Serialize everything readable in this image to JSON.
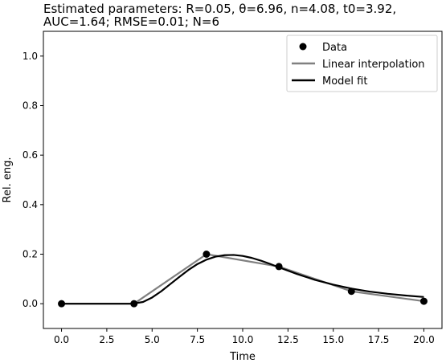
{
  "chart_data": {
    "type": "line",
    "title_lines": [
      "Estimated parameters: R=0.05, θ=6.96, n=4.08, t0=3.92,",
      "AUC=1.64; RMSE=0.01; N=6"
    ],
    "xlabel": "Time",
    "ylabel": "Rel. eng.",
    "xlim": [
      -1,
      21
    ],
    "ylim": [
      -0.1,
      1.1
    ],
    "xticks": [
      0,
      2.5,
      5,
      7.5,
      10,
      12.5,
      15,
      17.5,
      20
    ],
    "xtick_labels": [
      "0.0",
      "2.5",
      "5.0",
      "7.5",
      "10.0",
      "12.5",
      "15.0",
      "17.5",
      "20.0"
    ],
    "yticks": [
      0,
      0.2,
      0.4,
      0.6,
      0.8,
      1.0
    ],
    "ytick_labels": [
      "0.0",
      "0.2",
      "0.4",
      "0.6",
      "0.8",
      "1.0"
    ],
    "grid": false,
    "legend_position": "top-right",
    "series": [
      {
        "name": "Data",
        "kind": "scatter",
        "color": "#000000",
        "x": [
          0,
          4,
          8,
          12,
          16,
          20
        ],
        "y": [
          0.0,
          0.0,
          0.2,
          0.15,
          0.05,
          0.01
        ]
      },
      {
        "name": "Linear interpolation",
        "kind": "line",
        "color": "#808080",
        "x": [
          0,
          4,
          8,
          12,
          16,
          20
        ],
        "y": [
          0.0,
          0.0,
          0.2,
          0.15,
          0.05,
          0.01
        ]
      },
      {
        "name": "Model fit",
        "kind": "line",
        "color": "#000000",
        "x": [
          0,
          3.92,
          4.5,
          5,
          5.5,
          6,
          6.5,
          7,
          7.5,
          8,
          8.5,
          9,
          9.5,
          10,
          10.5,
          11,
          11.5,
          12,
          13,
          14,
          15,
          16,
          17,
          18,
          19,
          20
        ],
        "y": [
          0.0,
          0.0,
          0.007,
          0.025,
          0.05,
          0.079,
          0.108,
          0.136,
          0.16,
          0.178,
          0.19,
          0.196,
          0.197,
          0.193,
          0.185,
          0.174,
          0.161,
          0.147,
          0.12,
          0.096,
          0.077,
          0.061,
          0.049,
          0.04,
          0.033,
          0.027
        ]
      }
    ]
  }
}
